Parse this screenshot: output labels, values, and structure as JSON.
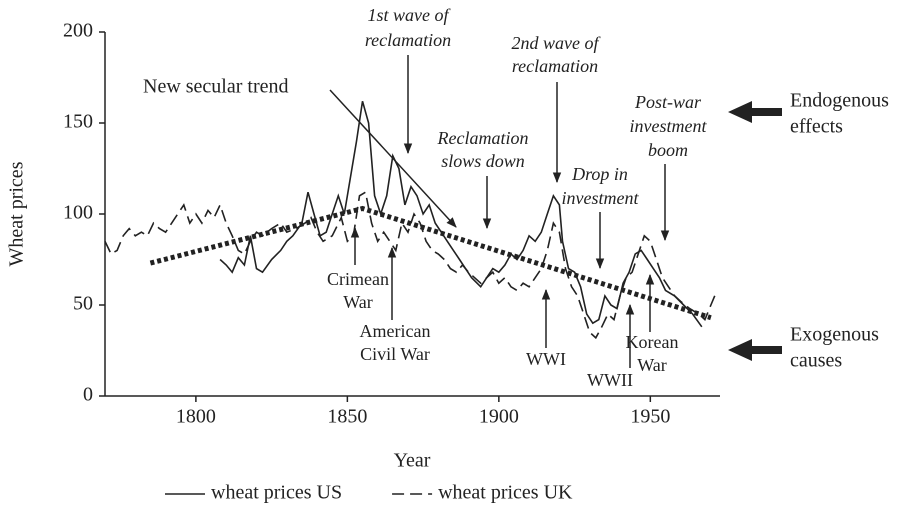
{
  "chart_data": {
    "type": "line",
    "x_label": "Year",
    "y_label": "Wheat prices",
    "xlim": [
      1770,
      1973
    ],
    "ylim": [
      0,
      200
    ],
    "xticks": [
      1800,
      1850,
      1900,
      1950
    ],
    "yticks": [
      0,
      50,
      100,
      150,
      200
    ],
    "series": [
      {
        "name": "wheat prices US",
        "color": "#222222",
        "dash": "solid",
        "x": [
          1808,
          1810,
          1812,
          1814,
          1816,
          1818,
          1820,
          1822,
          1825,
          1828,
          1830,
          1832,
          1835,
          1837,
          1839,
          1841,
          1843,
          1845,
          1847,
          1849,
          1851,
          1853,
          1855,
          1857,
          1859,
          1861,
          1863,
          1865,
          1867,
          1869,
          1871,
          1873,
          1875,
          1877,
          1879,
          1881,
          1883,
          1885,
          1887,
          1889,
          1891,
          1894,
          1896,
          1898,
          1900,
          1902,
          1904,
          1906,
          1908,
          1910,
          1912,
          1914,
          1916,
          1918,
          1920,
          1921,
          1923,
          1925,
          1927,
          1929,
          1931,
          1933,
          1935,
          1937,
          1939,
          1941,
          1943,
          1945,
          1947,
          1949,
          1951,
          1953,
          1955,
          1958,
          1961,
          1964,
          1967
        ],
        "values": [
          75,
          72,
          68,
          76,
          72,
          88,
          70,
          68,
          75,
          80,
          85,
          88,
          95,
          112,
          100,
          88,
          90,
          100,
          110,
          100,
          120,
          140,
          162,
          150,
          110,
          100,
          110,
          132,
          125,
          105,
          115,
          110,
          100,
          105,
          95,
          90,
          85,
          80,
          75,
          70,
          65,
          60,
          65,
          70,
          68,
          72,
          78,
          75,
          80,
          88,
          85,
          90,
          100,
          110,
          105,
          85,
          70,
          68,
          60,
          45,
          40,
          42,
          55,
          50,
          48,
          62,
          68,
          78,
          80,
          75,
          70,
          65,
          58,
          55,
          50,
          45,
          38
        ]
      },
      {
        "name": "wheat prices UK",
        "color": "#222222",
        "dash": "dashed",
        "x": [
          1770,
          1772,
          1774,
          1776,
          1778,
          1780,
          1782,
          1784,
          1786,
          1788,
          1790,
          1792,
          1794,
          1796,
          1798,
          1800,
          1802,
          1804,
          1806,
          1808,
          1810,
          1812,
          1814,
          1816,
          1818,
          1820,
          1822,
          1825,
          1828,
          1830,
          1833,
          1836,
          1838,
          1840,
          1842,
          1845,
          1848,
          1850,
          1852,
          1854,
          1856,
          1858,
          1860,
          1862,
          1864,
          1866,
          1868,
          1870,
          1872,
          1874,
          1876,
          1878,
          1880,
          1882,
          1884,
          1886,
          1888,
          1890,
          1892,
          1894,
          1896,
          1898,
          1900,
          1902,
          1904,
          1906,
          1908,
          1910,
          1912,
          1914,
          1916,
          1918,
          1920,
          1922,
          1924,
          1926,
          1928,
          1930,
          1932,
          1934,
          1936,
          1938,
          1940,
          1942,
          1944,
          1946,
          1948,
          1950,
          1952,
          1954,
          1956,
          1958,
          1960,
          1963,
          1966,
          1968,
          1970,
          1972
        ],
        "values": [
          85,
          78,
          80,
          88,
          92,
          88,
          90,
          88,
          95,
          92,
          90,
          95,
          100,
          105,
          95,
          100,
          95,
          102,
          98,
          105,
          95,
          88,
          80,
          78,
          85,
          90,
          88,
          92,
          95,
          90,
          92,
          95,
          98,
          90,
          85,
          88,
          98,
          85,
          88,
          110,
          112,
          95,
          85,
          90,
          85,
          80,
          95,
          90,
          100,
          95,
          85,
          80,
          78,
          75,
          70,
          68,
          72,
          68,
          65,
          62,
          65,
          68,
          62,
          65,
          60,
          58,
          62,
          60,
          65,
          70,
          80,
          95,
          90,
          70,
          60,
          55,
          45,
          35,
          32,
          38,
          45,
          42,
          55,
          65,
          68,
          78,
          88,
          85,
          75,
          65,
          60,
          55,
          52,
          48,
          45,
          42,
          50,
          58
        ]
      }
    ],
    "trend_line": {
      "x": [
        1785,
        1855,
        1970
      ],
      "values": [
        73,
        103,
        43
      ]
    },
    "annotations": [
      {
        "lines": [
          "1st wave of",
          "reclamation"
        ]
      },
      {
        "lines": [
          "New secular trend"
        ]
      },
      {
        "lines": [
          "2nd wave of",
          "reclamation"
        ]
      },
      {
        "lines": [
          "Reclamation",
          "slows down"
        ]
      },
      {
        "lines": [
          "Post-war",
          "investment",
          "boom"
        ]
      },
      {
        "lines": [
          "Drop in",
          "investment"
        ]
      },
      {
        "lines": [
          "Crimean",
          "War"
        ]
      },
      {
        "lines": [
          "American",
          "Civil War"
        ]
      },
      {
        "lines": [
          "WWI"
        ]
      },
      {
        "lines": [
          "WWII"
        ]
      },
      {
        "lines": [
          "Korean",
          "War"
        ]
      },
      {
        "lines": [
          "Endogenous",
          "effects"
        ]
      },
      {
        "lines": [
          "Exogenous",
          "causes"
        ]
      }
    ]
  }
}
